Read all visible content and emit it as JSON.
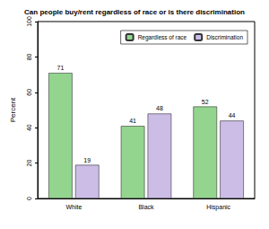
{
  "chart_data": {
    "type": "bar",
    "title": "Can people buy/rent regardless of race or is there discrimination",
    "categories": [
      "White",
      "Black",
      "Hispanic"
    ],
    "series": [
      {
        "name": "Regardless of race",
        "color": "#93d58f",
        "values": [
          71,
          41,
          52
        ]
      },
      {
        "name": "Discrimination",
        "color": "#cbbde6",
        "values": [
          19,
          48,
          44
        ]
      }
    ],
    "y_label": "Percent",
    "ylim": [
      0,
      100
    ],
    "yticks": [
      0,
      20,
      40,
      60,
      80,
      100
    ],
    "grid": false,
    "legend": "upper right",
    "data_labels": true
  }
}
